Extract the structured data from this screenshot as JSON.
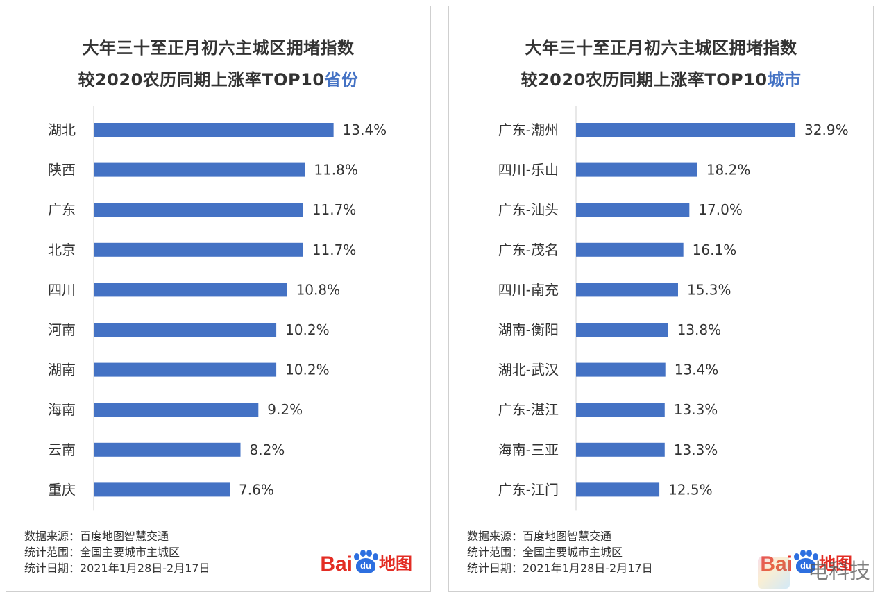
{
  "colors": {
    "bar": "#4472c4",
    "highlight": "#4472c4",
    "logo_red": "#e32d24",
    "logo_blue": "#2d6fe0"
  },
  "left": {
    "title_line1": "大年三十至正月初六主城区拥堵指数",
    "title_line2_prefix": "较2020农历同期上涨率TOP10",
    "title_line2_highlight": "省份",
    "footer": [
      "数据来源：百度地图智慧交通",
      "统计范围：全国主要城市主城区",
      "统计日期：2021年1月28日-2月17日"
    ],
    "logo": {
      "brand": "Bai",
      "paw_text": "du",
      "suffix": "地图"
    }
  },
  "right": {
    "title_line1": "大年三十至正月初六主城区拥堵指数",
    "title_line2_prefix": "较2020农历同期上涨率TOP10",
    "title_line2_highlight": "城市",
    "footer": [
      "数据来源：百度地图智慧交通",
      "统计范围：全国主要城市主城区",
      "统计日期：2021年1月28日-2月17日"
    ],
    "logo": {
      "brand": "Bai",
      "paw_text": "du",
      "suffix": "地图"
    }
  },
  "watermark": "电科技",
  "chart_data": [
    {
      "type": "bar",
      "orientation": "horizontal",
      "title": "大年三十至正月初六主城区拥堵指数较2020农历同期上涨率TOP10省份",
      "categories": [
        "湖北",
        "陕西",
        "广东",
        "北京",
        "四川",
        "河南",
        "湖南",
        "海南",
        "云南",
        "重庆"
      ],
      "values": [
        13.4,
        11.8,
        11.7,
        11.7,
        10.8,
        10.2,
        10.2,
        9.2,
        8.2,
        7.6
      ],
      "labels": [
        "13.4%",
        "11.8%",
        "11.7%",
        "11.7%",
        "10.8%",
        "10.2%",
        "10.2%",
        "9.2%",
        "8.2%",
        "7.6%"
      ],
      "xlim": [
        0,
        14.5
      ],
      "grid": false,
      "legend": "none"
    },
    {
      "type": "bar",
      "orientation": "horizontal",
      "title": "大年三十至正月初六主城区拥堵指数较2020农历同期上涨率TOP10城市",
      "categories": [
        "广东-潮州",
        "四川-乐山",
        "广东-汕头",
        "广东-茂名",
        "四川-南充",
        "湖南-衡阳",
        "湖北-武汉",
        "广东-湛江",
        "海南-三亚",
        "广东-江门"
      ],
      "values": [
        32.9,
        18.2,
        17.0,
        16.1,
        15.3,
        13.8,
        13.4,
        13.3,
        13.3,
        12.5
      ],
      "labels": [
        "32.9%",
        "18.2%",
        "17.0%",
        "16.1%",
        "15.3%",
        "13.8%",
        "13.4%",
        "13.3%",
        "13.3%",
        "12.5%"
      ],
      "xlim": [
        0,
        35.6
      ],
      "grid": false,
      "legend": "none"
    }
  ]
}
